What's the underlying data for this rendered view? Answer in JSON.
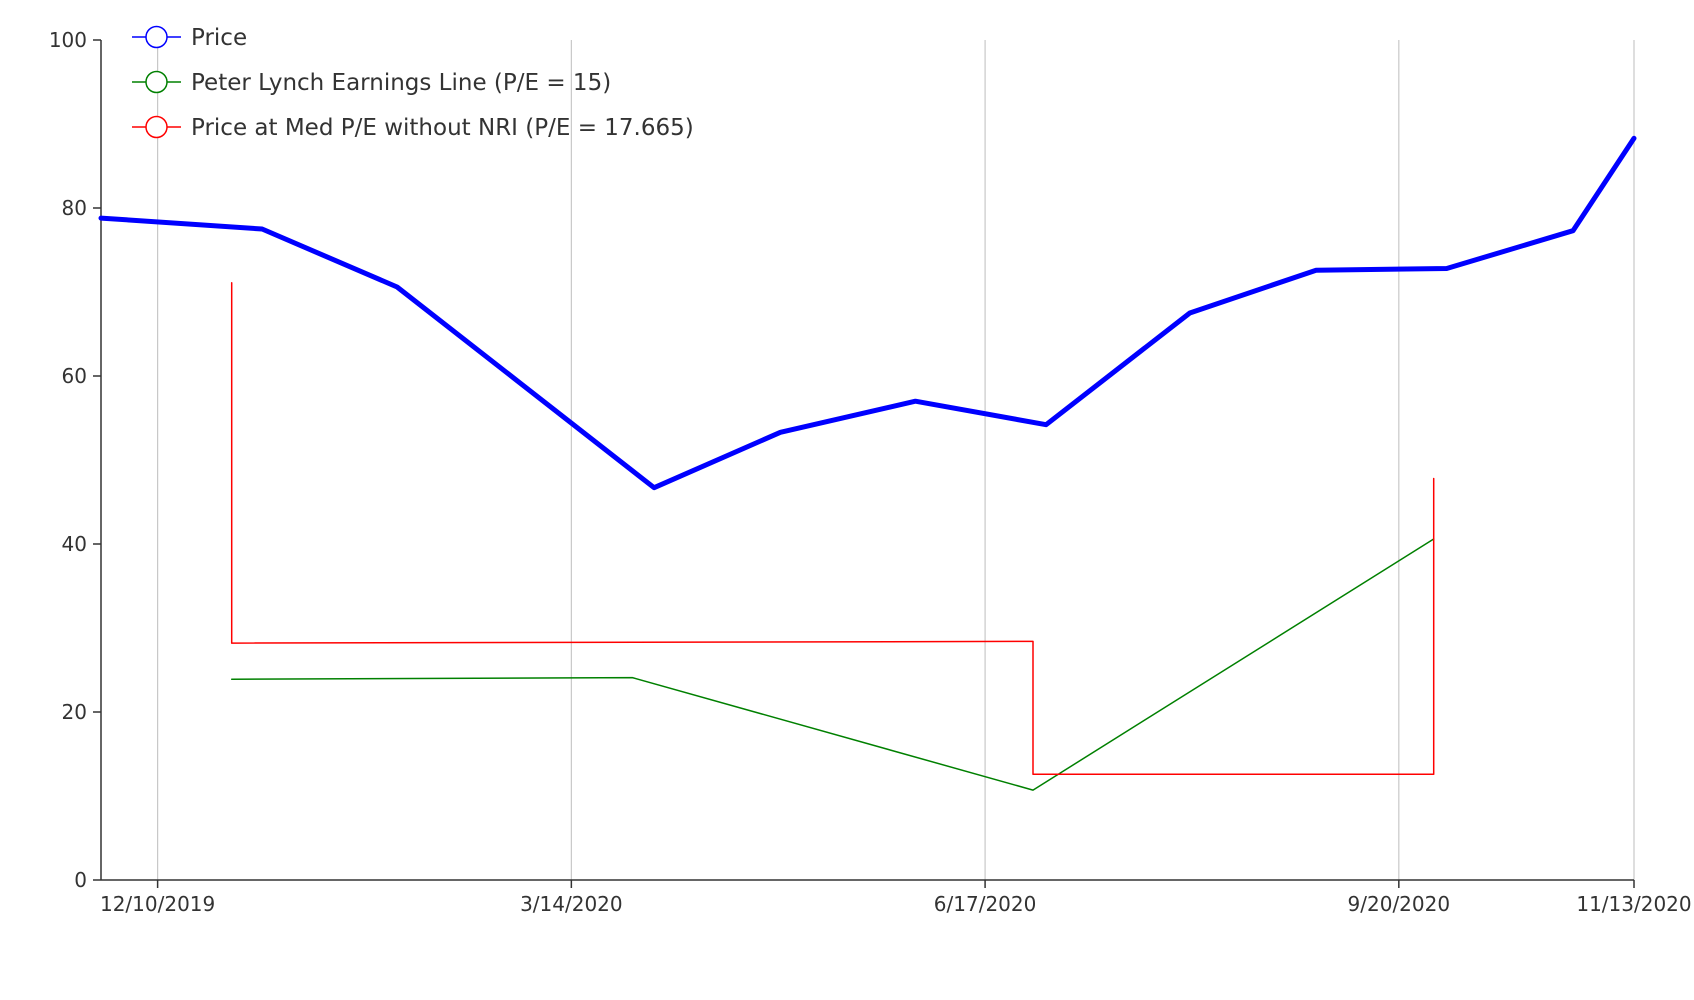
{
  "chart_data": {
    "type": "line",
    "title": "",
    "xlabel": "",
    "ylabel": "",
    "ylim": [
      0,
      100
    ],
    "xlim": [
      "2019-11-27",
      "2020-11-13"
    ],
    "grid": {
      "x": true,
      "y": false
    },
    "legend_position": "top-left",
    "y_ticks": [
      0,
      20,
      40,
      60,
      80,
      100
    ],
    "x_ticks": [
      {
        "date": "2019-12-10",
        "label": "12/10/2019"
      },
      {
        "date": "2020-03-14",
        "label": "3/14/2020"
      },
      {
        "date": "2020-06-17",
        "label": "6/17/2020"
      },
      {
        "date": "2020-09-20",
        "label": "9/20/2020"
      },
      {
        "date": "2020-11-13",
        "label": "11/13/2020"
      }
    ],
    "series": [
      {
        "name": "Price",
        "color": "#0000ff",
        "line_style": "thick",
        "step": false,
        "points": [
          {
            "x": "2019-11-27",
            "y": 78.8
          },
          {
            "x": "2020-01-03",
            "y": 77.5
          },
          {
            "x": "2020-02-03",
            "y": 70.6
          },
          {
            "x": "2020-04-02",
            "y": 46.7
          },
          {
            "x": "2020-05-01",
            "y": 53.3
          },
          {
            "x": "2020-06-01",
            "y": 57.0
          },
          {
            "x": "2020-07-01",
            "y": 54.2
          },
          {
            "x": "2020-08-03",
            "y": 67.5
          },
          {
            "x": "2020-09-01",
            "y": 72.6
          },
          {
            "x": "2020-10-01",
            "y": 72.8
          },
          {
            "x": "2020-10-30",
            "y": 77.3
          },
          {
            "x": "2020-11-13",
            "y": 88.3
          }
        ]
      },
      {
        "name": "Peter Lynch Earnings Line (P/E = 15)",
        "color": "#008000",
        "line_style": "thin",
        "step": false,
        "points": [
          {
            "x": "2019-12-27",
            "y": 23.9
          },
          {
            "x": "2020-03-28",
            "y": 24.1
          },
          {
            "x": "2020-06-28",
            "y": 10.7
          },
          {
            "x": "2020-09-28",
            "y": 40.6
          }
        ]
      },
      {
        "name": "Price at Med P/E without NRI (P/E = 17.665)",
        "color": "#ff0000",
        "line_style": "thin",
        "step": true,
        "points": [
          {
            "x": "2019-12-27",
            "y": 71.1
          },
          {
            "x": "2019-12-27",
            "y": 28.2
          },
          {
            "x": "2020-06-28",
            "y": 28.4
          },
          {
            "x": "2020-06-28",
            "y": 12.6
          },
          {
            "x": "2020-09-28",
            "y": 12.6
          },
          {
            "x": "2020-09-28",
            "y": 47.8
          }
        ]
      }
    ]
  }
}
